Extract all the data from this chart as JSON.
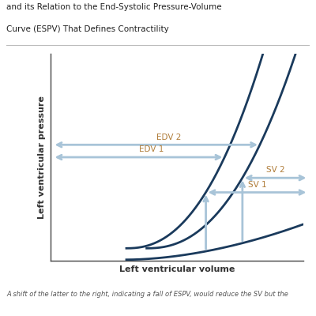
{
  "title_lines": [
    "and its Relation to the End-Systolic Pressure-Volume",
    "Curve (ESPV) That Defines Contractility"
  ],
  "xlabel": "Left ventricular volume",
  "ylabel": "Left ventricular pressure",
  "footer": "A shift of the latter to the right, indicating a fall of ESPV, would reduce the SV but the",
  "curve_color": "#1a3a5c",
  "arrow_color": "#a8c4d8",
  "label_color": "#b07d3a",
  "background_color": "#ffffff",
  "edv2_label": "EDV 2",
  "edv1_label": "EDV 1",
  "sv2_label": "SV 2",
  "sv1_label": "SV 1",
  "xlim": [
    0,
    10
  ],
  "ylim": [
    0,
    10
  ],
  "p_edv2": 5.6,
  "p_edv1": 5.0,
  "p_sv2": 4.0,
  "p_sv1": 3.3
}
